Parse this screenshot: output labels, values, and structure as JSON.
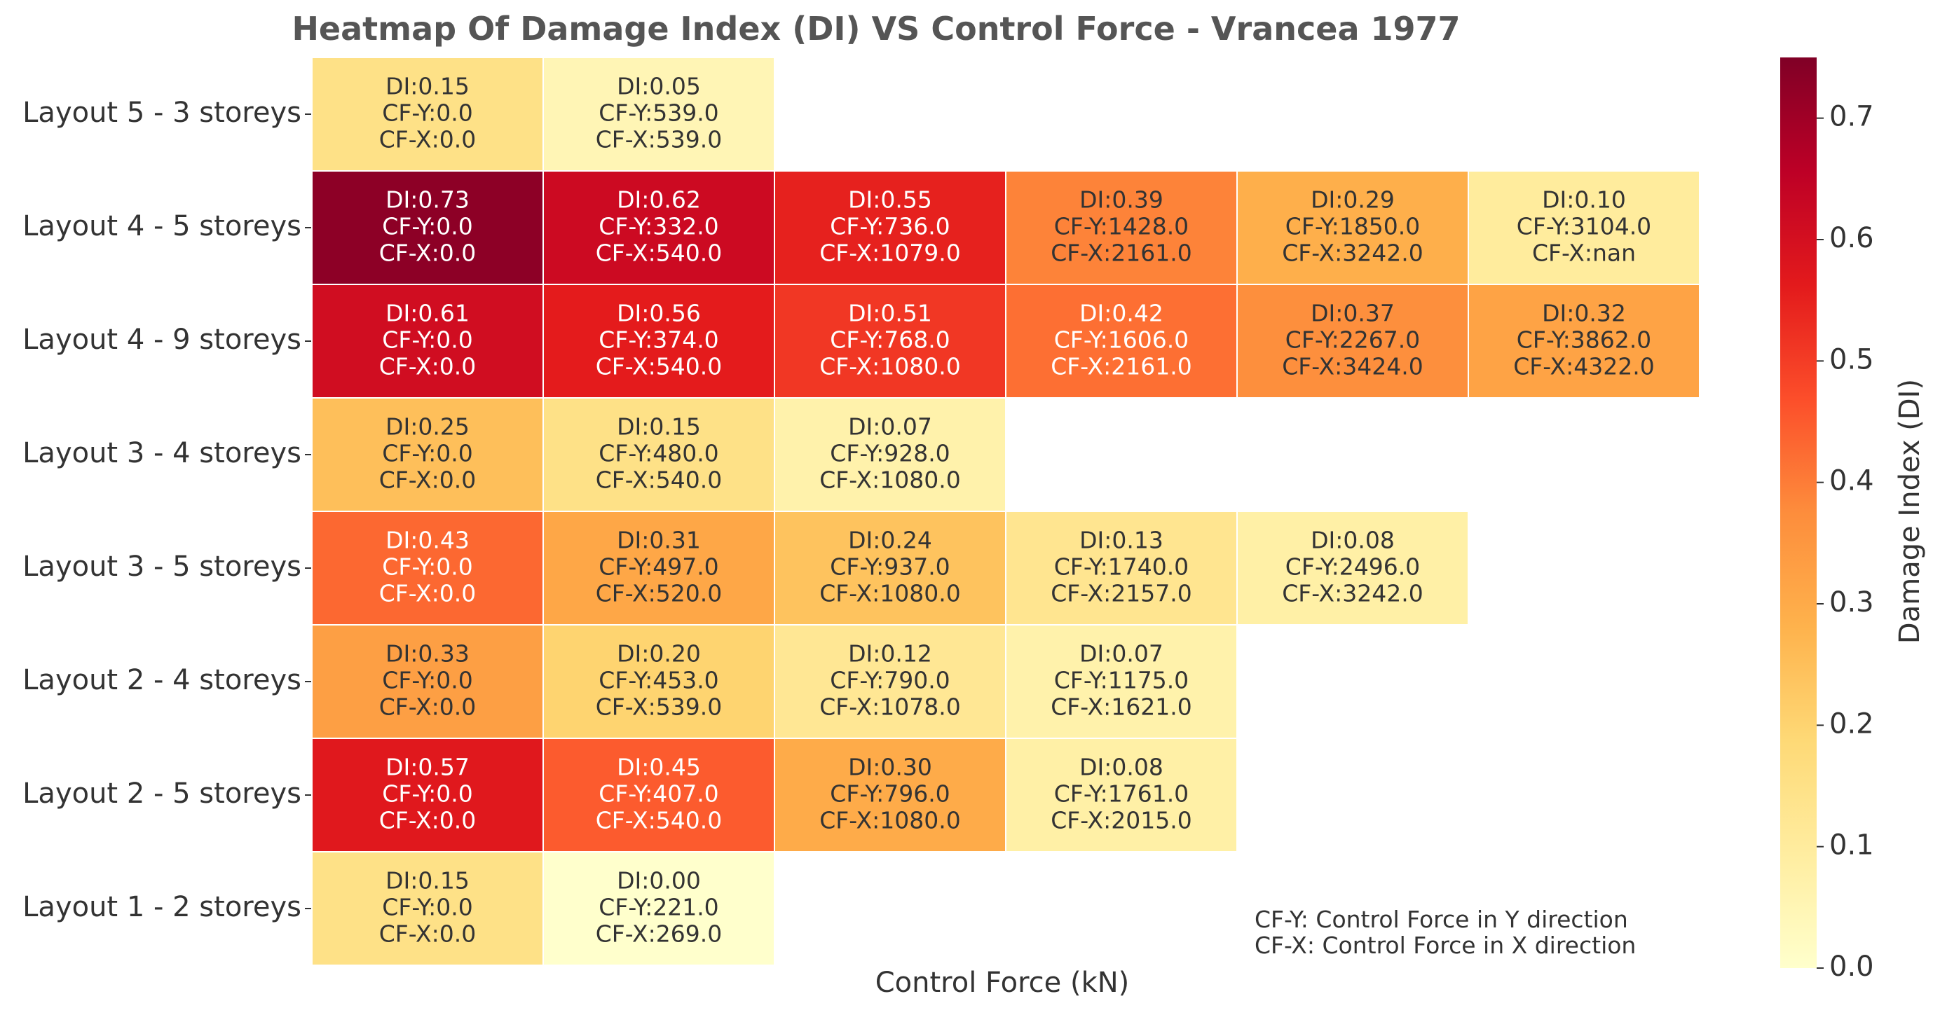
{
  "chart_data": {
    "type": "heatmap",
    "title": "Heatmap Of Damage Index (DI) VS Control Force - Vrancea 1977",
    "xlabel": "Control Force (kN)",
    "colorbar": {
      "label": "Damage Index (DI)",
      "range": [
        0.0,
        0.75
      ],
      "ticks": [
        "0.0",
        "0.1",
        "0.2",
        "0.3",
        "0.4",
        "0.5",
        "0.6",
        "0.7"
      ],
      "colormap": [
        "#ffffcc",
        "#ffeda0",
        "#fed976",
        "#feb24c",
        "#fd8d3c",
        "#fc4e2a",
        "#e31a1c",
        "#bd0026",
        "#800026"
      ]
    },
    "rows": [
      {
        "label": "Layout 5 - 3 storeys",
        "cells": [
          {
            "di": 0.15,
            "lines": [
              "DI:0.15",
              "CF-Y:0.0",
              "CF-X:0.0"
            ]
          },
          {
            "di": 0.05,
            "lines": [
              "DI:0.05",
              "CF-Y:539.0",
              "CF-X:539.0"
            ]
          }
        ]
      },
      {
        "label": "Layout 4 - 5 storeys",
        "cells": [
          {
            "di": 0.73,
            "lines": [
              "DI:0.73",
              "CF-Y:0.0",
              "CF-X:0.0"
            ]
          },
          {
            "di": 0.62,
            "lines": [
              "DI:0.62",
              "CF-Y:332.0",
              "CF-X:540.0"
            ]
          },
          {
            "di": 0.55,
            "lines": [
              "DI:0.55",
              "CF-Y:736.0",
              "CF-X:1079.0"
            ]
          },
          {
            "di": 0.39,
            "lines": [
              "DI:0.39",
              "CF-Y:1428.0",
              "CF-X:2161.0"
            ]
          },
          {
            "di": 0.29,
            "lines": [
              "DI:0.29",
              "CF-Y:1850.0",
              "CF-X:3242.0"
            ]
          },
          {
            "di": 0.1,
            "lines": [
              "DI:0.10",
              "CF-Y:3104.0",
              "CF-X:nan"
            ]
          }
        ]
      },
      {
        "label": "Layout 4 - 9 storeys",
        "cells": [
          {
            "di": 0.61,
            "lines": [
              "DI:0.61",
              "CF-Y:0.0",
              "CF-X:0.0"
            ]
          },
          {
            "di": 0.56,
            "lines": [
              "DI:0.56",
              "CF-Y:374.0",
              "CF-X:540.0"
            ]
          },
          {
            "di": 0.51,
            "lines": [
              "DI:0.51",
              "CF-Y:768.0",
              "CF-X:1080.0"
            ]
          },
          {
            "di": 0.42,
            "lines": [
              "DI:0.42",
              "CF-Y:1606.0",
              "CF-X:2161.0"
            ]
          },
          {
            "di": 0.37,
            "lines": [
              "DI:0.37",
              "CF-Y:2267.0",
              "CF-X:3424.0"
            ]
          },
          {
            "di": 0.32,
            "lines": [
              "DI:0.32",
              "CF-Y:3862.0",
              "CF-X:4322.0"
            ]
          }
        ]
      },
      {
        "label": "Layout 3 - 4 storeys",
        "cells": [
          {
            "di": 0.25,
            "lines": [
              "DI:0.25",
              "CF-Y:0.0",
              "CF-X:0.0"
            ]
          },
          {
            "di": 0.15,
            "lines": [
              "DI:0.15",
              "CF-Y:480.0",
              "CF-X:540.0"
            ]
          },
          {
            "di": 0.07,
            "lines": [
              "DI:0.07",
              "CF-Y:928.0",
              "CF-X:1080.0"
            ]
          }
        ]
      },
      {
        "label": "Layout 3 - 5 storeys",
        "cells": [
          {
            "di": 0.43,
            "lines": [
              "DI:0.43",
              "CF-Y:0.0",
              "CF-X:0.0"
            ]
          },
          {
            "di": 0.31,
            "lines": [
              "DI:0.31",
              "CF-Y:497.0",
              "CF-X:520.0"
            ]
          },
          {
            "di": 0.24,
            "lines": [
              "DI:0.24",
              "CF-Y:937.0",
              "CF-X:1080.0"
            ]
          },
          {
            "di": 0.13,
            "lines": [
              "DI:0.13",
              "CF-Y:1740.0",
              "CF-X:2157.0"
            ]
          },
          {
            "di": 0.08,
            "lines": [
              "DI:0.08",
              "CF-Y:2496.0",
              "CF-X:3242.0"
            ]
          }
        ]
      },
      {
        "label": "Layout 2 - 4 storeys",
        "cells": [
          {
            "di": 0.33,
            "lines": [
              "DI:0.33",
              "CF-Y:0.0",
              "CF-X:0.0"
            ]
          },
          {
            "di": 0.2,
            "lines": [
              "DI:0.20",
              "CF-Y:453.0",
              "CF-X:539.0"
            ]
          },
          {
            "di": 0.12,
            "lines": [
              "DI:0.12",
              "CF-Y:790.0",
              "CF-X:1078.0"
            ]
          },
          {
            "di": 0.07,
            "lines": [
              "DI:0.07",
              "CF-Y:1175.0",
              "CF-X:1621.0"
            ]
          }
        ]
      },
      {
        "label": "Layout 2 - 5 storeys",
        "cells": [
          {
            "di": 0.57,
            "lines": [
              "DI:0.57",
              "CF-Y:0.0",
              "CF-X:0.0"
            ]
          },
          {
            "di": 0.45,
            "lines": [
              "DI:0.45",
              "CF-Y:407.0",
              "CF-X:540.0"
            ]
          },
          {
            "di": 0.3,
            "lines": [
              "DI:0.30",
              "CF-Y:796.0",
              "CF-X:1080.0"
            ]
          },
          {
            "di": 0.08,
            "lines": [
              "DI:0.08",
              "CF-Y:1761.0",
              "CF-X:2015.0"
            ]
          }
        ]
      },
      {
        "label": "Layout 1 - 2 storeys",
        "cells": [
          {
            "di": 0.15,
            "lines": [
              "DI:0.15",
              "CF-Y:0.0",
              "CF-X:0.0"
            ]
          },
          {
            "di": 0.0,
            "lines": [
              "DI:0.00",
              "CF-Y:221.0",
              "CF-X:269.0"
            ]
          }
        ]
      }
    ],
    "footnotes": [
      "CF-Y: Control Force in Y direction",
      "CF-X: Control Force in X direction"
    ]
  }
}
